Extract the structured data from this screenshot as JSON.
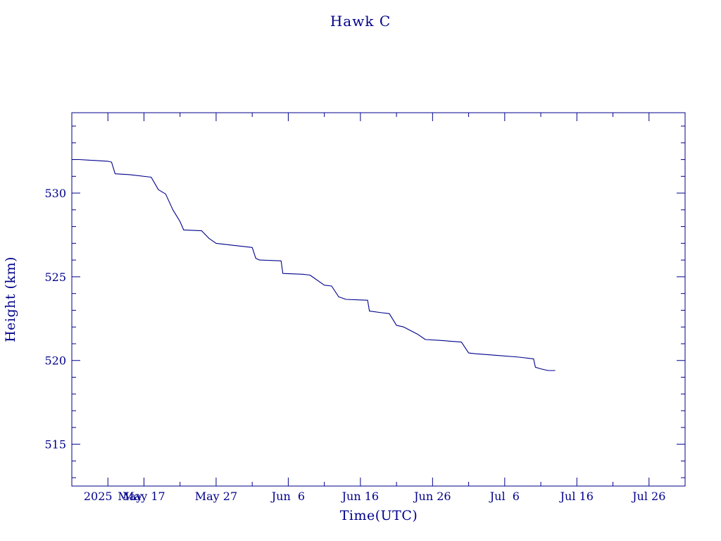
{
  "chart_data": {
    "type": "line",
    "title": "Hawk C",
    "xlabel": "Time(UTC)",
    "ylabel": "Height (km)",
    "xlim": [
      "2025-05-07",
      "2025-07-31"
    ],
    "ylim": [
      512.5,
      534.8
    ],
    "yticks": [
      515,
      520,
      525,
      530
    ],
    "xticks": [
      {
        "date": "2025-05-12",
        "label": "2025"
      },
      {
        "date": "2025-05-17",
        "label": "May 17"
      },
      {
        "date": "2025-05-27",
        "label": "May 27"
      },
      {
        "date": "2025-06-06",
        "label": "Jun  6"
      },
      {
        "date": "2025-06-16",
        "label": "Jun 16"
      },
      {
        "date": "2025-06-26",
        "label": "Jun 26"
      },
      {
        "date": "2025-07-06",
        "label": "Jul  6"
      },
      {
        "date": "2025-07-16",
        "label": "Jul 16"
      },
      {
        "date": "2025-07-26",
        "label": "Jul 26"
      }
    ],
    "extra_tick_label": "May",
    "minor_y_step": 1,
    "minor_x_step_days": 5,
    "grid": false,
    "color": "#00008b",
    "series": [
      {
        "name": "",
        "points": [
          [
            "2025-05-07",
            532.0
          ],
          [
            "2025-05-08",
            532.0
          ],
          [
            "2025-05-10",
            531.95
          ],
          [
            "2025-05-12",
            531.9
          ],
          [
            "2025-05-12T12",
            531.85
          ],
          [
            "2025-05-13",
            531.15
          ],
          [
            "2025-05-15",
            531.1
          ],
          [
            "2025-05-18",
            530.95
          ],
          [
            "2025-05-19",
            530.2
          ],
          [
            "2025-05-20",
            529.95
          ],
          [
            "2025-05-21",
            529.0
          ],
          [
            "2025-05-22",
            528.3
          ],
          [
            "2025-05-22T12",
            527.8
          ],
          [
            "2025-05-25",
            527.75
          ],
          [
            "2025-05-26",
            527.3
          ],
          [
            "2025-05-27",
            527.0
          ],
          [
            "2025-05-29",
            526.9
          ],
          [
            "2025-06-01",
            526.75
          ],
          [
            "2025-06-01T12",
            526.1
          ],
          [
            "2025-06-02",
            526.0
          ],
          [
            "2025-06-05",
            525.95
          ],
          [
            "2025-06-05T06",
            525.2
          ],
          [
            "2025-06-08",
            525.15
          ],
          [
            "2025-06-09",
            525.1
          ],
          [
            "2025-06-11",
            524.5
          ],
          [
            "2025-06-12",
            524.45
          ],
          [
            "2025-06-13",
            523.8
          ],
          [
            "2025-06-14",
            523.65
          ],
          [
            "2025-06-17",
            523.6
          ],
          [
            "2025-06-17T06",
            522.95
          ],
          [
            "2025-06-19",
            522.85
          ],
          [
            "2025-06-20",
            522.8
          ],
          [
            "2025-06-21",
            522.1
          ],
          [
            "2025-06-22",
            522.0
          ],
          [
            "2025-06-24",
            521.55
          ],
          [
            "2025-06-25",
            521.25
          ],
          [
            "2025-06-27",
            521.2
          ],
          [
            "2025-06-30",
            521.1
          ],
          [
            "2025-07-01",
            520.45
          ],
          [
            "2025-07-02",
            520.4
          ],
          [
            "2025-07-05",
            520.3
          ],
          [
            "2025-07-08",
            520.2
          ],
          [
            "2025-07-10",
            520.1
          ],
          [
            "2025-07-10T06",
            519.6
          ],
          [
            "2025-07-11",
            519.5
          ],
          [
            "2025-07-12",
            519.4
          ],
          [
            "2025-07-13",
            519.4
          ]
        ]
      }
    ]
  }
}
